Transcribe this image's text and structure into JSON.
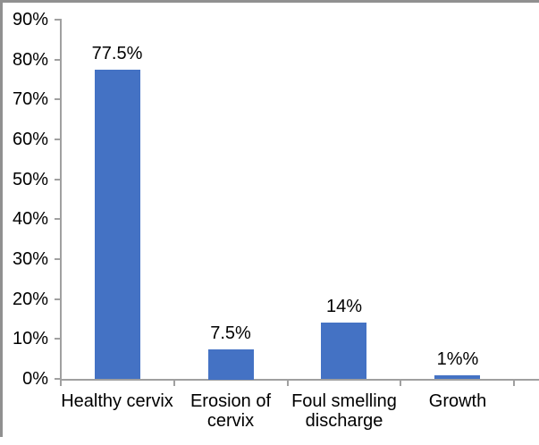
{
  "chart_data": {
    "type": "bar",
    "title": "",
    "xlabel": "",
    "ylabel": "",
    "categories": [
      "Healthy cervix",
      "Erosion of\ncervix",
      "Foul smelling\ndischarge",
      "Growth"
    ],
    "values": [
      77.5,
      7.5,
      14,
      1
    ],
    "data_labels": [
      "77.5%",
      "7.5%",
      "14%",
      "1%%"
    ],
    "ylim": [
      0,
      90
    ],
    "ytick_step": 10,
    "ytick_labels": [
      "0%",
      "10%",
      "20%",
      "30%",
      "40%",
      "50%",
      "60%",
      "70%",
      "80%",
      "90%"
    ],
    "grid": false,
    "legend": "none",
    "bar_color": "#4472C4",
    "axis_color": "#A0A0A0",
    "text_color": "#000000",
    "frame_border_color": "#909090"
  }
}
